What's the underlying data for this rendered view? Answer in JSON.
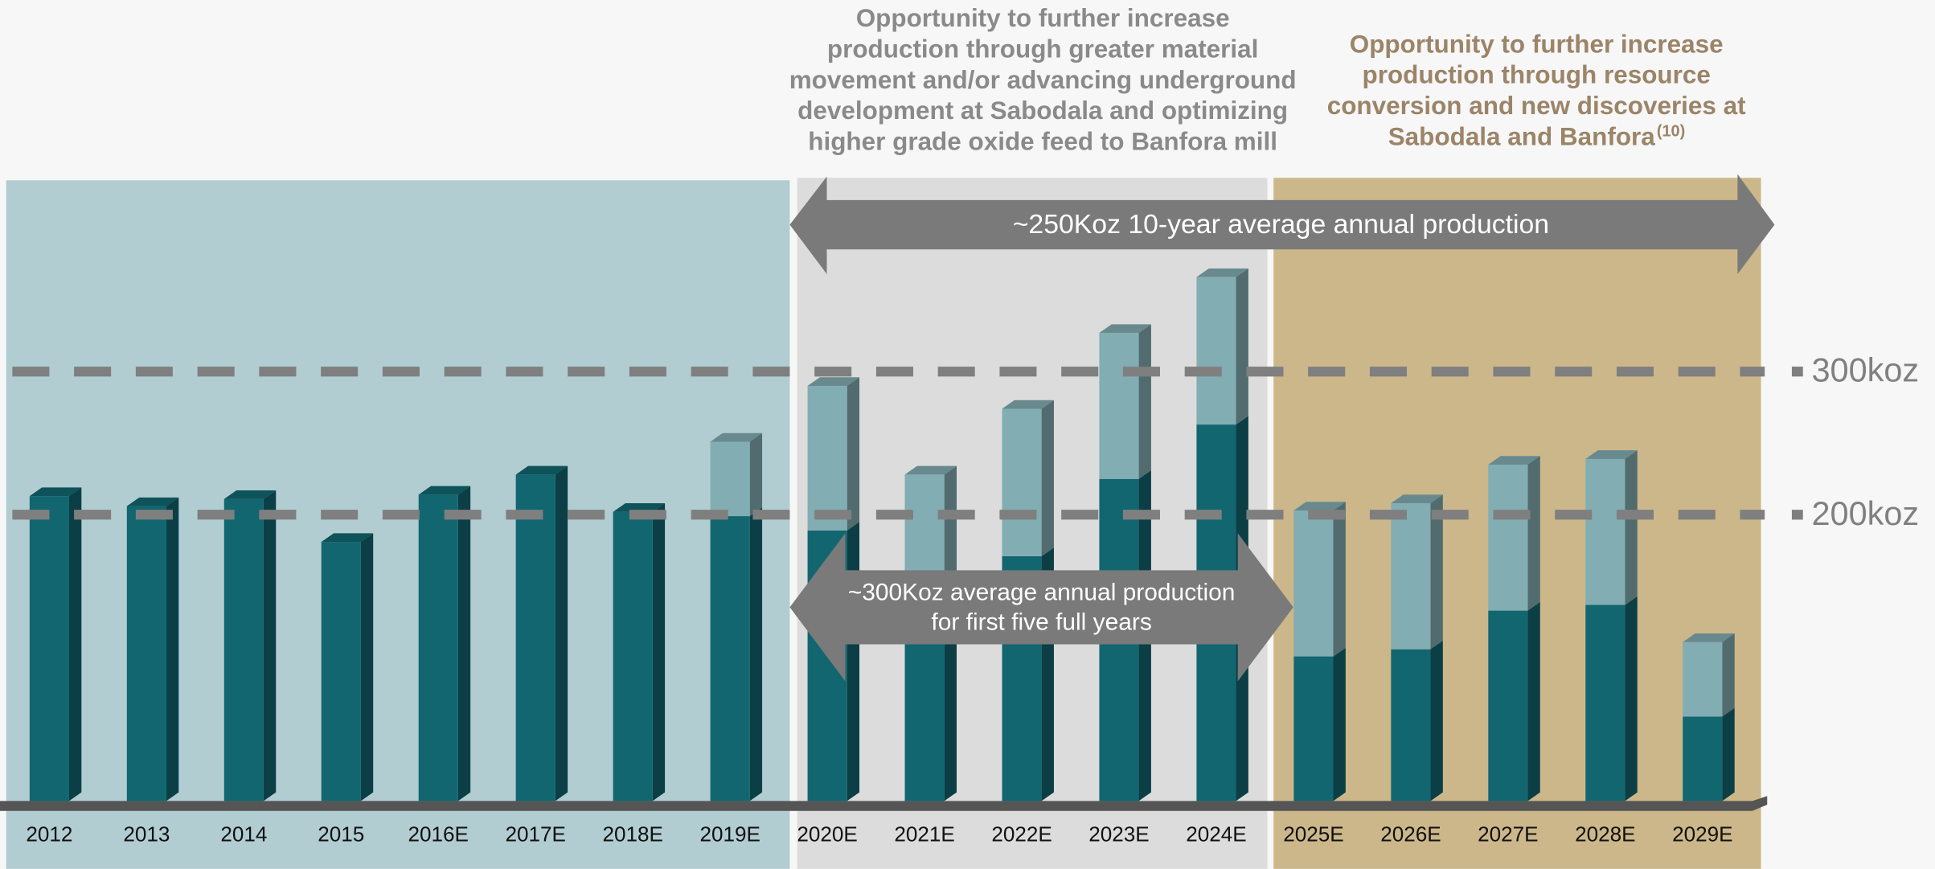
{
  "chart_data": {
    "type": "bar",
    "stacked": true,
    "categories": [
      "2012",
      "2013",
      "2014",
      "2015",
      "2016E",
      "2017E",
      "2018E",
      "2019E",
      "2020E",
      "2021E",
      "2022E",
      "2023E",
      "2024E",
      "2025E",
      "2026E",
      "2027E",
      "2028E",
      "2029E"
    ],
    "series": [
      {
        "color": "#126670",
        "values": [
          213,
          206,
          211,
          181,
          214,
          228,
          202,
          199,
          189,
          150,
          171,
          225,
          263,
          101,
          106,
          133,
          137,
          59
        ]
      },
      {
        "color": "#82adb3",
        "values": [
          0,
          0,
          0,
          0,
          0,
          0,
          0,
          52,
          101,
          78,
          103,
          102,
          103,
          102,
          102,
          102,
          102,
          52
        ]
      }
    ],
    "ylim": [
      0,
      400
    ],
    "reference_lines": [
      {
        "value": 300,
        "label": "300koz"
      },
      {
        "value": 200,
        "label": "200koz"
      }
    ],
    "annotations": {
      "gray_note": [
        "Opportunity to further increase",
        "production through greater material",
        "movement and/or advancing underground",
        "development at Sabodala and optimizing",
        "higher grade oxide feed to Banfora mill"
      ],
      "tan_note": [
        "Opportunity to further increase",
        "production through resource",
        "conversion and new discoveries at",
        "Sabodala and Banfora"
      ],
      "tan_note_superscript": "(10)",
      "ten_year_arrow": "~250Koz 10-year average annual production",
      "five_year_arrow": [
        "~300Koz average annual production",
        "for first five full years"
      ]
    }
  }
}
